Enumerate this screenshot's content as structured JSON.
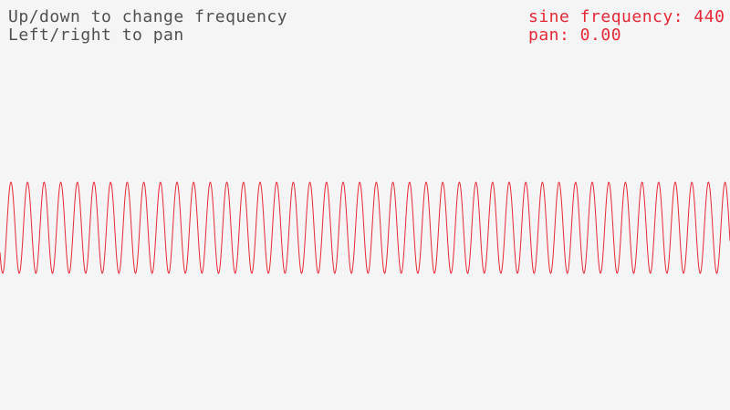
{
  "instructions": {
    "line1": "Up/down to change frequency",
    "line2": "Left/right to pan"
  },
  "status": {
    "frequency_label": "sine frequency: 440",
    "pan_label": "pan: 0.00",
    "frequency": 440,
    "pan": 0.0
  },
  "colors": {
    "background": "#f5f5f5",
    "text": "#505050",
    "accent": "#e62937"
  }
}
